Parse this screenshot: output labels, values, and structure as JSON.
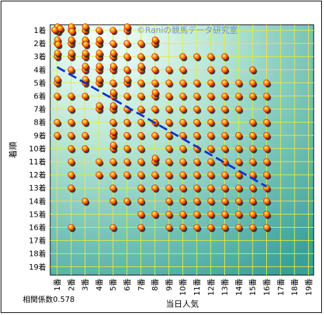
{
  "chart_data": {
    "type": "scatter",
    "title": "",
    "xlabel": "当日人気",
    "ylabel": "着順",
    "x_ticks": [
      "1番",
      "2番",
      "3番",
      "4番",
      "5番",
      "6番",
      "7番",
      "8番",
      "9番",
      "10番",
      "11番",
      "12番",
      "13番",
      "14番",
      "15番",
      "16番",
      "17番",
      "18番",
      "19番"
    ],
    "y_ticks": [
      "1着",
      "2着",
      "3着",
      "4着",
      "5着",
      "6着",
      "7着",
      "8着",
      "9着",
      "10着",
      "11着",
      "12着",
      "13着",
      "14着",
      "15着",
      "16着",
      "17着",
      "18着",
      "19着"
    ],
    "xlim": [
      1,
      19
    ],
    "ylim": [
      1,
      19
    ],
    "y_inverted": true,
    "grid": true,
    "correlation_label": "相関係数0.578",
    "watermark": "©Raniの競馬データ研究室",
    "trend_line": {
      "start": [
        1,
        3.8
      ],
      "end": [
        16,
        12.9
      ],
      "color": "#1030cc",
      "style": "dashed"
    },
    "points": [
      [
        1,
        1
      ],
      [
        1,
        1
      ],
      [
        1,
        1
      ],
      [
        1,
        1
      ],
      [
        1,
        1
      ],
      [
        2,
        1
      ],
      [
        2,
        1
      ],
      [
        2,
        1
      ],
      [
        3,
        1
      ],
      [
        3,
        1
      ],
      [
        4,
        1
      ],
      [
        5,
        1
      ],
      [
        6,
        1
      ],
      [
        6,
        1
      ],
      [
        1,
        2
      ],
      [
        1,
        2
      ],
      [
        1,
        2
      ],
      [
        2,
        2
      ],
      [
        2,
        2
      ],
      [
        3,
        2
      ],
      [
        3,
        2
      ],
      [
        3,
        2
      ],
      [
        4,
        2
      ],
      [
        4,
        2
      ],
      [
        5,
        2
      ],
      [
        6,
        2
      ],
      [
        7,
        2
      ],
      [
        8,
        2
      ],
      [
        8,
        2
      ],
      [
        1,
        3
      ],
      [
        1,
        3
      ],
      [
        2,
        3
      ],
      [
        2,
        3
      ],
      [
        3,
        3
      ],
      [
        3,
        3
      ],
      [
        4,
        3
      ],
      [
        4,
        3
      ],
      [
        5,
        3
      ],
      [
        5,
        3
      ],
      [
        6,
        3
      ],
      [
        7,
        3
      ],
      [
        8,
        3
      ],
      [
        10,
        3
      ],
      [
        11,
        3
      ],
      [
        12,
        3
      ],
      [
        13,
        3
      ],
      [
        2,
        4
      ],
      [
        3,
        4
      ],
      [
        3,
        4
      ],
      [
        4,
        4
      ],
      [
        4,
        4
      ],
      [
        5,
        4
      ],
      [
        5,
        4
      ],
      [
        6,
        4
      ],
      [
        7,
        4
      ],
      [
        7,
        4
      ],
      [
        8,
        4
      ],
      [
        9,
        4
      ],
      [
        10,
        4
      ],
      [
        12,
        4
      ],
      [
        13,
        4
      ],
      [
        15,
        4
      ],
      [
        1,
        5
      ],
      [
        1,
        5
      ],
      [
        3,
        5
      ],
      [
        3,
        5
      ],
      [
        4,
        5
      ],
      [
        4,
        5
      ],
      [
        5,
        5
      ],
      [
        6,
        5
      ],
      [
        6,
        5
      ],
      [
        7,
        5
      ],
      [
        8,
        5
      ],
      [
        9,
        5
      ],
      [
        10,
        5
      ],
      [
        11,
        5
      ],
      [
        12,
        5
      ],
      [
        13,
        5
      ],
      [
        14,
        5
      ],
      [
        15,
        5
      ],
      [
        16,
        5
      ],
      [
        1,
        6
      ],
      [
        2,
        6
      ],
      [
        3,
        6
      ],
      [
        5,
        6
      ],
      [
        5,
        6
      ],
      [
        6,
        6
      ],
      [
        7,
        6
      ],
      [
        8,
        6
      ],
      [
        8,
        6
      ],
      [
        9,
        6
      ],
      [
        10,
        6
      ],
      [
        11,
        6
      ],
      [
        12,
        6
      ],
      [
        13,
        6
      ],
      [
        14,
        6
      ],
      [
        15,
        6
      ],
      [
        16,
        6
      ],
      [
        2,
        7
      ],
      [
        4,
        7
      ],
      [
        4,
        7
      ],
      [
        5,
        7
      ],
      [
        5,
        7
      ],
      [
        6,
        7
      ],
      [
        7,
        7
      ],
      [
        8,
        7
      ],
      [
        9,
        7
      ],
      [
        10,
        7
      ],
      [
        11,
        7
      ],
      [
        12,
        7
      ],
      [
        13,
        7
      ],
      [
        14,
        7
      ],
      [
        16,
        7
      ],
      [
        1,
        8
      ],
      [
        2,
        8
      ],
      [
        3,
        8
      ],
      [
        5,
        8
      ],
      [
        6,
        8
      ],
      [
        7,
        8
      ],
      [
        8,
        8
      ],
      [
        9,
        8
      ],
      [
        10,
        8
      ],
      [
        11,
        8
      ],
      [
        12,
        8
      ],
      [
        13,
        8
      ],
      [
        15,
        8
      ],
      [
        16,
        8
      ],
      [
        1,
        9
      ],
      [
        2,
        9
      ],
      [
        3,
        9
      ],
      [
        5,
        9
      ],
      [
        5,
        9
      ],
      [
        6,
        9
      ],
      [
        7,
        9
      ],
      [
        8,
        9
      ],
      [
        9,
        9
      ],
      [
        10,
        9
      ],
      [
        11,
        9
      ],
      [
        12,
        9
      ],
      [
        13,
        9
      ],
      [
        14,
        9
      ],
      [
        15,
        9
      ],
      [
        16,
        9
      ],
      [
        2,
        10
      ],
      [
        3,
        10
      ],
      [
        5,
        10
      ],
      [
        5,
        10
      ],
      [
        6,
        10
      ],
      [
        7,
        10
      ],
      [
        9,
        10
      ],
      [
        10,
        10
      ],
      [
        11,
        10
      ],
      [
        12,
        10
      ],
      [
        13,
        10
      ],
      [
        14,
        10
      ],
      [
        15,
        10
      ],
      [
        16,
        10
      ],
      [
        2,
        11
      ],
      [
        4,
        11
      ],
      [
        5,
        11
      ],
      [
        6,
        11
      ],
      [
        7,
        11
      ],
      [
        8,
        11
      ],
      [
        8,
        11
      ],
      [
        9,
        11
      ],
      [
        10,
        11
      ],
      [
        11,
        11
      ],
      [
        12,
        11
      ],
      [
        13,
        11
      ],
      [
        14,
        11
      ],
      [
        15,
        11
      ],
      [
        16,
        11
      ],
      [
        2,
        12
      ],
      [
        4,
        12
      ],
      [
        5,
        12
      ],
      [
        6,
        12
      ],
      [
        7,
        12
      ],
      [
        8,
        12
      ],
      [
        9,
        12
      ],
      [
        10,
        12
      ],
      [
        11,
        12
      ],
      [
        12,
        12
      ],
      [
        13,
        12
      ],
      [
        14,
        12
      ],
      [
        15,
        12
      ],
      [
        16,
        12
      ],
      [
        2,
        13
      ],
      [
        5,
        13
      ],
      [
        7,
        13
      ],
      [
        8,
        13
      ],
      [
        9,
        13
      ],
      [
        10,
        13
      ],
      [
        11,
        13
      ],
      [
        12,
        13
      ],
      [
        13,
        13
      ],
      [
        14,
        13
      ],
      [
        15,
        13
      ],
      [
        16,
        13
      ],
      [
        3,
        14
      ],
      [
        5,
        14
      ],
      [
        6,
        14
      ],
      [
        7,
        14
      ],
      [
        9,
        14
      ],
      [
        10,
        14
      ],
      [
        11,
        14
      ],
      [
        12,
        14
      ],
      [
        13,
        14
      ],
      [
        14,
        14
      ],
      [
        15,
        14
      ],
      [
        16,
        14
      ],
      [
        7,
        15
      ],
      [
        8,
        15
      ],
      [
        9,
        15
      ],
      [
        10,
        15
      ],
      [
        11,
        15
      ],
      [
        12,
        15
      ],
      [
        13,
        15
      ],
      [
        14,
        15
      ],
      [
        15,
        15
      ],
      [
        16,
        15
      ],
      [
        2,
        16
      ],
      [
        5,
        16
      ],
      [
        7,
        16
      ],
      [
        9,
        16
      ],
      [
        10,
        16
      ],
      [
        11,
        16
      ],
      [
        12,
        16
      ],
      [
        13,
        16
      ],
      [
        14,
        16
      ],
      [
        15,
        16
      ],
      [
        16,
        16
      ]
    ]
  },
  "colors": {
    "dot_fill": "#ff9900",
    "dot_stroke": "#cc1100",
    "dot_shadow": "#222222",
    "grid": "#e8e840",
    "plot_bg_light": "#f4fff8",
    "plot_bg_dark": "#38a09a"
  }
}
